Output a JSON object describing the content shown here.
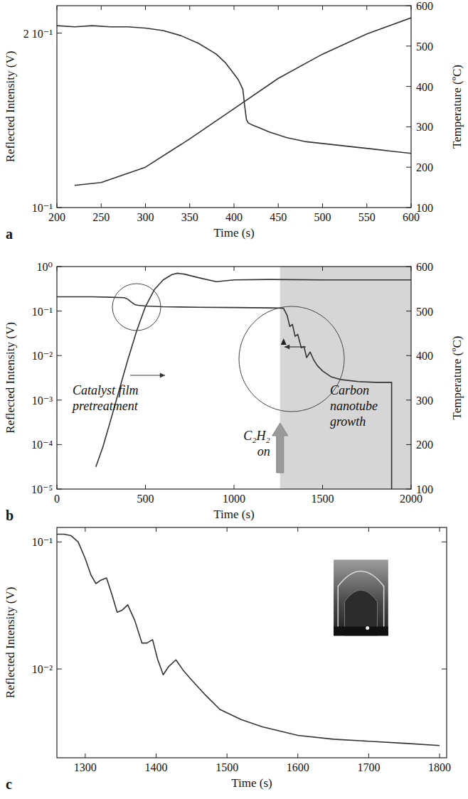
{
  "chart_data": [
    {
      "type": "line",
      "panel": "a",
      "x_label": "Time (s)",
      "y_label": "Reflected Intensity (V)",
      "y2_label": "Temperature (ºC)",
      "xlim": [
        200,
        600
      ],
      "xticks": [
        200,
        250,
        300,
        350,
        400,
        450,
        500,
        550,
        600
      ],
      "log": "y",
      "ylim": [
        0.1,
        0.223
      ],
      "yticks": [
        {
          "value": 0.1,
          "label": "10⁻¹"
        },
        {
          "value": 0.2,
          "label": "2 10⁻¹"
        }
      ],
      "y2lim": [
        100,
        600
      ],
      "y2ticks": [
        100,
        200,
        300,
        400,
        500,
        600
      ],
      "series": [
        {
          "color": "#333333",
          "x": [
            200,
            220,
            240,
            260,
            280,
            300,
            320,
            340,
            360,
            380,
            390,
            400,
            405,
            410,
            412,
            414,
            416,
            420,
            430,
            440,
            460,
            480,
            500,
            520,
            540,
            560,
            580,
            600
          ],
          "values": [
            0.206,
            0.205,
            0.206,
            0.205,
            0.205,
            0.204,
            0.202,
            0.198,
            0.192,
            0.184,
            0.178,
            0.17,
            0.166,
            0.16,
            0.15,
            0.142,
            0.14,
            0.139,
            0.137,
            0.135,
            0.132,
            0.13,
            0.129,
            0.128,
            0.127,
            0.126,
            0.125,
            0.124
          ]
        },
        {
          "color": "#333333",
          "axis": "y2",
          "x": [
            220,
            250,
            300,
            350,
            400,
            450,
            500,
            550,
            600
          ],
          "values": [
            155,
            162,
            200,
            270,
            345,
            420,
            480,
            530,
            570
          ]
        }
      ]
    },
    {
      "type": "line",
      "panel": "b",
      "x_label": "Time (s)",
      "y_label": "Reflected Intensity (V)",
      "y2_label": "Temperature (ºC)",
      "xlim": [
        0,
        2000
      ],
      "xticks": [
        0,
        500,
        1000,
        1500,
        2000
      ],
      "log": "y",
      "ylim": [
        1e-05,
        1
      ],
      "yticks": [
        {
          "value": 1,
          "label": "10⁰"
        },
        {
          "value": 0.1,
          "label": "10⁻¹"
        },
        {
          "value": 0.01,
          "label": "10⁻²"
        },
        {
          "value": 0.001,
          "label": "10⁻³"
        },
        {
          "value": 0.0001,
          "label": "10⁻⁴"
        },
        {
          "value": 1e-05,
          "label": "10⁻⁵"
        }
      ],
      "y2lim": [
        100,
        600
      ],
      "y2ticks": [
        100,
        200,
        300,
        400,
        500,
        600
      ],
      "shaded_x": [
        1260,
        2000
      ],
      "annotations": [
        {
          "text": "Catalyst film pretreatment"
        },
        {
          "text": "Carbon nanotube growth"
        },
        {
          "text": "C₂H₂ on"
        }
      ],
      "series": [
        {
          "color": "#333333",
          "x": [
            0,
            100,
            200,
            300,
            380,
            400,
            420,
            440,
            460,
            500,
            600,
            800,
            1000,
            1200,
            1260,
            1280,
            1300,
            1315,
            1330,
            1345,
            1360,
            1380,
            1395,
            1410,
            1430,
            1450,
            1470,
            1500,
            1550,
            1600,
            1700,
            1800,
            1880,
            1890,
            1890
          ],
          "values": [
            0.21,
            0.21,
            0.21,
            0.205,
            0.2,
            0.185,
            0.16,
            0.14,
            0.135,
            0.13,
            0.125,
            0.122,
            0.12,
            0.118,
            0.117,
            0.115,
            0.08,
            0.045,
            0.05,
            0.027,
            0.03,
            0.015,
            0.016,
            0.009,
            0.012,
            0.008,
            0.006,
            0.0045,
            0.0033,
            0.0029,
            0.0026,
            0.0025,
            0.0025,
            0.0025,
            1e-05
          ]
        },
        {
          "color": "#333333",
          "axis": "y2",
          "x": [
            220,
            260,
            300,
            350,
            400,
            450,
            500,
            550,
            600,
            650,
            680,
            720,
            800,
            900,
            1000,
            1200,
            1500,
            1800,
            2000
          ],
          "values": [
            150,
            195,
            250,
            320,
            390,
            455,
            510,
            548,
            570,
            582,
            585,
            583,
            575,
            566,
            570,
            571,
            570,
            570,
            570
          ]
        }
      ]
    },
    {
      "type": "line",
      "panel": "c",
      "x_label": "Time (s)",
      "y_label": "Reflected Intensity (V)",
      "xlim": [
        1260,
        1810
      ],
      "xticks": [
        1300,
        1400,
        1500,
        1600,
        1700,
        1800
      ],
      "log": "y",
      "ylim": [
        0.002,
        0.13
      ],
      "yticks": [
        {
          "value": 0.1,
          "label": "10⁻¹"
        },
        {
          "value": 0.01,
          "label": "10⁻²"
        }
      ],
      "series": [
        {
          "color": "#333333",
          "x": [
            1260,
            1270,
            1280,
            1290,
            1300,
            1308,
            1315,
            1322,
            1330,
            1338,
            1345,
            1352,
            1360,
            1370,
            1380,
            1387,
            1395,
            1402,
            1410,
            1418,
            1428,
            1438,
            1450,
            1470,
            1490,
            1520,
            1550,
            1600,
            1650,
            1700,
            1750,
            1800
          ],
          "values": [
            0.115,
            0.115,
            0.112,
            0.1,
            0.074,
            0.055,
            0.047,
            0.05,
            0.052,
            0.038,
            0.028,
            0.029,
            0.032,
            0.024,
            0.016,
            0.016,
            0.017,
            0.012,
            0.009,
            0.0105,
            0.0118,
            0.0098,
            0.0082,
            0.0062,
            0.0048,
            0.004,
            0.0035,
            0.003,
            0.0028,
            0.0027,
            0.0026,
            0.0025
          ]
        }
      ]
    }
  ]
}
